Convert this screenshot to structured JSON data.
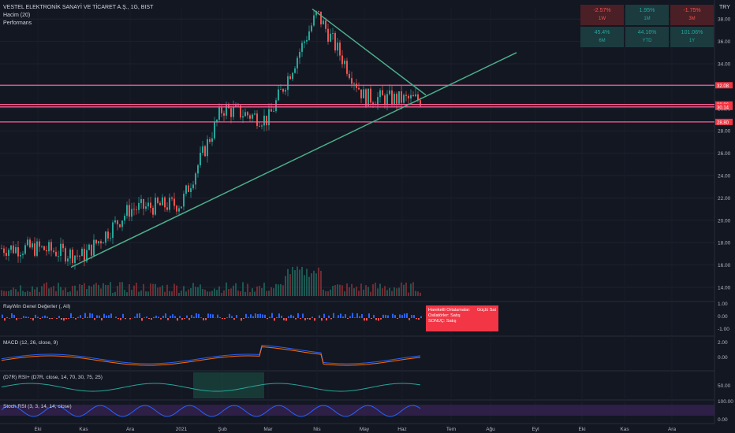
{
  "header": {
    "symbol_line": "VESTEL ELEKTRONİK SANAYİ VE TİCARET A.Ş., 1G, BIST",
    "volume_label": "Hacim (20)",
    "performance_label": "Performans",
    "currency": "TRY"
  },
  "performance": [
    {
      "value": "-2.57%",
      "period": "1W",
      "status": "neg"
    },
    {
      "value": "1.95%",
      "period": "1M",
      "status": "pos"
    },
    {
      "value": "-1.75%",
      "period": "3M",
      "status": "neg"
    },
    {
      "value": "45.4%",
      "period": "6M",
      "status": "pos"
    },
    {
      "value": "44.16%",
      "period": "YTD",
      "status": "pos"
    },
    {
      "value": "101.06%",
      "period": "1Y",
      "status": "pos"
    }
  ],
  "panes": {
    "raywin_label": "RayWin Genel Değerler (, All)",
    "macd_label": "MACD (12, 26, close, 9)",
    "rsi_label": "(D7R) RSI+ (D7R, close, 14, 70, 30, 75, 25)",
    "stoch_label": "Stoch RSI (3, 3, 14, 14, close)"
  },
  "signal_box": {
    "row1_label": "Hareketli Ortalamalar:",
    "row1_value": "Güçlü Sat",
    "row2_label": "Osilatörler: Satış",
    "row3_label": "SONUÇ:",
    "row3_value": "Satış"
  },
  "colors": {
    "background": "#131722",
    "up": "#26a69a",
    "down": "#ef5350",
    "level_line": "#ff5c93",
    "trend_line": "#4caf8a"
  },
  "chart_data": {
    "type": "candlestick",
    "price_axis_ticks": [
      38.0,
      36.0,
      34.0,
      32.0,
      30.0,
      28.0,
      26.0,
      24.0,
      22.0,
      20.0,
      18.0,
      16.0,
      14.0
    ],
    "price_range": [
      13.3,
      39.0
    ],
    "horizontal_levels": [
      {
        "price": 32.08,
        "label": "32.08"
      },
      {
        "price": 30.36,
        "label": "30.36"
      },
      {
        "price": 30.14,
        "label": "30.14"
      },
      {
        "price": 28.8,
        "label": "28.80"
      }
    ],
    "time_axis": [
      "Eki",
      "Kas",
      "Ara",
      "2021",
      "Şub",
      "Mar",
      "Nis",
      "May",
      "Haz",
      "Tem",
      "Ağu",
      "Eyl",
      "Eki",
      "Kas",
      "Ara"
    ],
    "key_prices": [
      {
        "date": "Eki",
        "close": 17.5
      },
      {
        "date": "Kas",
        "close": 16.8
      },
      {
        "date": "Ara",
        "close": 21.0
      },
      {
        "date": "2021",
        "close": 21.5
      },
      {
        "date": "Şub",
        "close": 30.0
      },
      {
        "date": "Mar",
        "close": 29.0
      },
      {
        "date": "Nis",
        "close": 38.5
      },
      {
        "date": "May",
        "close": 31.0
      },
      {
        "date": "Haz",
        "close": 30.8
      }
    ],
    "raywin_axis": [
      "1.00",
      "0.00",
      "-1.00"
    ],
    "macd_axis": [
      "2.00",
      "0.00"
    ],
    "rsi_axis": [
      "50.00"
    ],
    "stoch_axis": [
      "100.00",
      "0.00"
    ]
  }
}
